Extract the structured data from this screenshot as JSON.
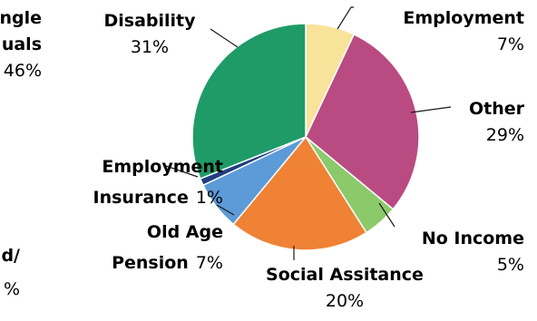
{
  "chart_data": {
    "type": "pie",
    "slices": [
      {
        "label": "Employment",
        "label_lines": [
          "Employment"
        ],
        "value": 7,
        "value_text": "7%",
        "color": "#f8e39a"
      },
      {
        "label": "Other",
        "label_lines": [
          "Other"
        ],
        "value": 29,
        "value_text": "29%",
        "color": "#b94b82"
      },
      {
        "label": "No Income",
        "label_lines": [
          "No Income"
        ],
        "value": 5,
        "value_text": "5%",
        "color": "#8cc96b"
      },
      {
        "label": "Social Assitance",
        "label_lines": [
          "Social Assitance"
        ],
        "value": 20,
        "value_text": "20%",
        "color": "#ef8234"
      },
      {
        "label": "Old Age Pension",
        "label_lines": [
          "Old Age",
          "Pension"
        ],
        "value": 7,
        "value_text": "7%",
        "color": "#5d9ad8"
      },
      {
        "label": "Employment Insurance",
        "label_lines": [
          "Employment",
          "Insurance"
        ],
        "value": 1,
        "value_text": "1%",
        "color": "#1f3f82"
      },
      {
        "label": "Disability",
        "label_lines": [
          "Disability"
        ],
        "value": 31,
        "value_text": "31%",
        "color": "#1f9b67"
      }
    ],
    "partial_left_labels": [
      "ngle",
      "uals",
      "46%",
      "d/",
      "%"
    ]
  }
}
